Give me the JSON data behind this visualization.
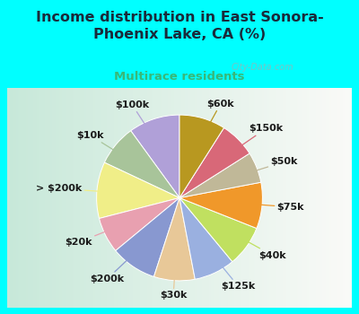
{
  "title": "Income distribution in East Sonora-\nPhoenix Lake, CA (%)",
  "subtitle": "Multirace residents",
  "background_color": "#00FFFF",
  "labels": [
    "$100k",
    "$10k",
    "> $200k",
    "$20k",
    "$200k",
    "$30k",
    "$125k",
    "$40k",
    "$75k",
    "$50k",
    "$150k",
    "$60k"
  ],
  "values": [
    10,
    8,
    11,
    7,
    9,
    8,
    8,
    8,
    9,
    6,
    7,
    9
  ],
  "colors": [
    "#b0a0d8",
    "#a8c49a",
    "#f0ee88",
    "#e8a0b0",
    "#8898d0",
    "#e8c898",
    "#9ab0e0",
    "#c0e060",
    "#f0982a",
    "#c0b898",
    "#d86878",
    "#b89820"
  ],
  "watermark": "City-Data.com",
  "startangle": 90,
  "title_color": "#1a2a3a",
  "subtitle_color": "#38b878",
  "label_fontsize": 8.0,
  "label_color": "#1a1a1a"
}
